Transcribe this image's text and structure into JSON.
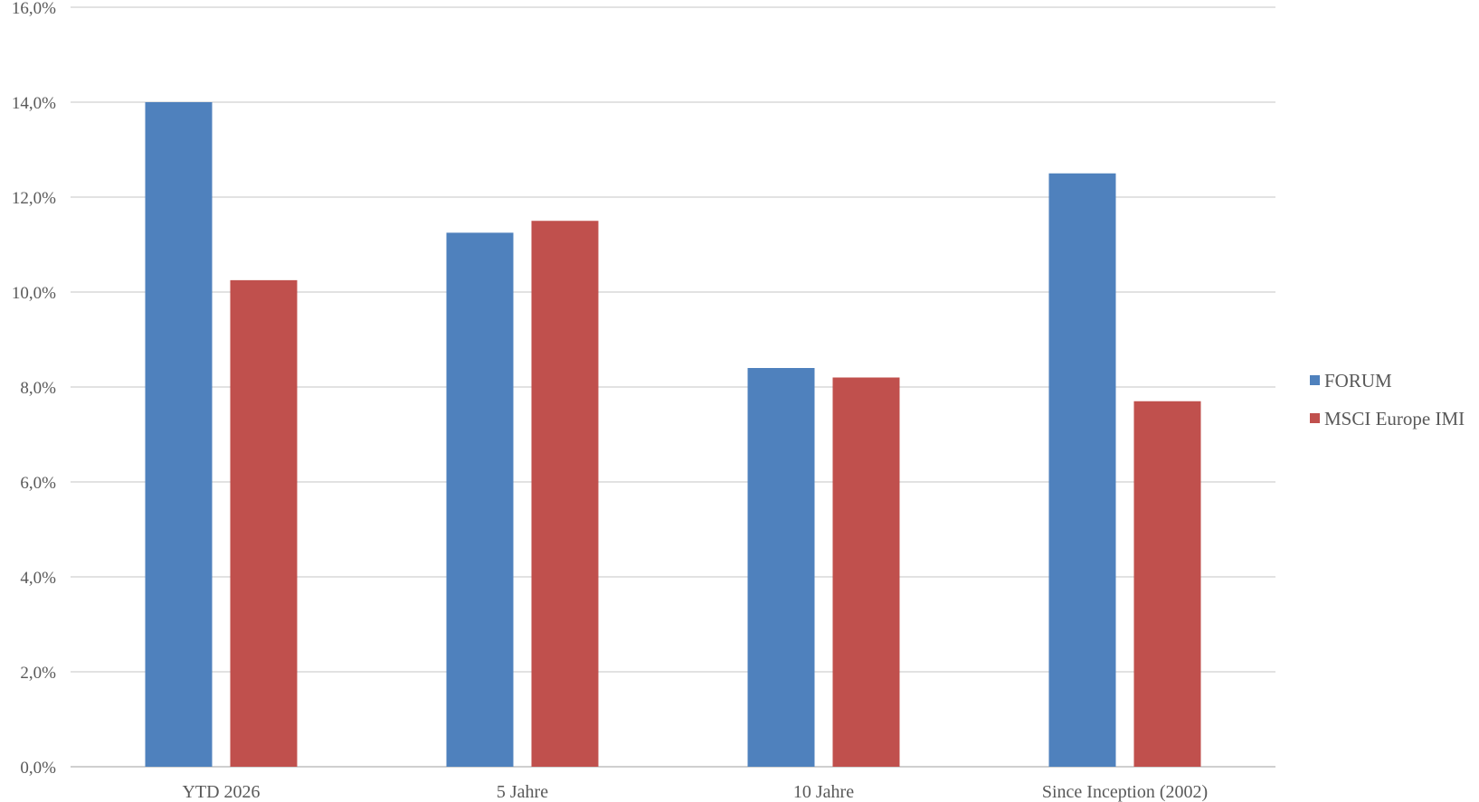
{
  "chart_data": {
    "type": "bar",
    "categories": [
      "YTD 2026",
      "5 Jahre",
      "10 Jahre",
      "Since Inception (2002)"
    ],
    "series": [
      {
        "name": "FORUM",
        "values": [
          14.0,
          11.25,
          8.4,
          12.5
        ],
        "color": "#4F81BD"
      },
      {
        "name": "MSCI Europe IMI",
        "values": [
          10.25,
          11.5,
          8.2,
          7.7
        ],
        "color": "#C0504D"
      }
    ],
    "ylim": [
      0,
      16
    ],
    "yticks": [
      "0,0%",
      "2,0%",
      "4,0%",
      "6,0%",
      "8,0%",
      "10,0%",
      "12,0%",
      "14,0%",
      "16,0%"
    ],
    "ytick_values": [
      0,
      2,
      4,
      6,
      8,
      10,
      12,
      14,
      16
    ],
    "grid": true,
    "legend_position": "right",
    "title": "",
    "xlabel": "",
    "ylabel": ""
  }
}
